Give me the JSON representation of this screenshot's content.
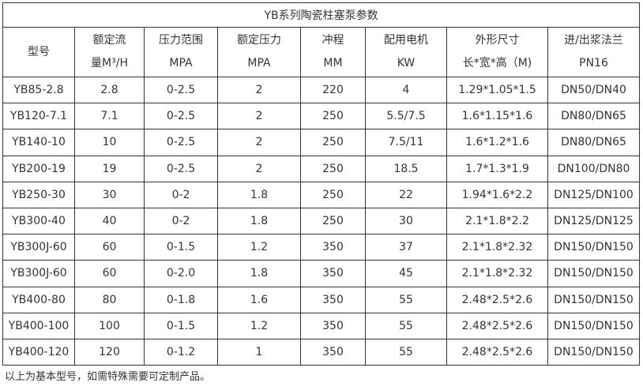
{
  "title": "YB系列陶瓷柱塞泵参数",
  "headers": [
    [
      "型号"
    ],
    [
      "额定流",
      "量M³/H"
    ],
    [
      "压力范围",
      "MPA"
    ],
    [
      "额定压力",
      "MPA"
    ],
    [
      "冲程",
      "MM"
    ],
    [
      "配用电机",
      "KW"
    ],
    [
      "外形尺寸",
      "长*宽*高（M)"
    ],
    [
      "进/出浆法兰",
      "PN16"
    ]
  ],
  "rows": [
    [
      "YB85-2.8",
      "2.8",
      "0-2.5",
      "2",
      "220",
      "4",
      "1.29*1.05*1.5",
      "DN50/DN40"
    ],
    [
      "YB120-7.1",
      "7.1",
      "0-2.5",
      "2",
      "250",
      "5.5/7.5",
      "1.6*1.15*1.6",
      "DN80/DN65"
    ],
    [
      "YB140-10",
      "10",
      "0-2.5",
      "2",
      "250",
      "7.5/11",
      "1.6*1.2*1.6",
      "DN80/DN65"
    ],
    [
      "YB200-19",
      "19",
      "0-2.5",
      "2",
      "250",
      "18.5",
      "1.7*1.3*1.9",
      "DN100/DN80"
    ],
    [
      "YB250-30",
      "30",
      "0-2",
      "1.8",
      "250",
      "22",
      "1.94*1.6*2.2",
      "DN125/DN100"
    ],
    [
      "YB300-40",
      "40",
      "0-2",
      "1.8",
      "250",
      "30",
      "2.1*1.8*2.2",
      "DN125/DN125"
    ],
    [
      "YB300J-60",
      "60",
      "0-1.5",
      "1.2",
      "350",
      "37",
      "2.1*1.8*2.32",
      "DN150/DN150"
    ],
    [
      "YB300J-60",
      "60",
      "0-2.0",
      "1.8",
      "350",
      "45",
      "2.1*1.8*2.32",
      "DN150/DN150"
    ],
    [
      "YB400-80",
      "80",
      "0-1.8",
      "1.6",
      "350",
      "55",
      "2.48*2.5*2.6",
      "DN150/DN150"
    ],
    [
      "YB400-100",
      "100",
      "0-1.5",
      "1.2",
      "350",
      "55",
      "2.48*2.5*2.6",
      "DN150/DN150"
    ],
    [
      "YB400-120",
      "120",
      "0-1.2",
      "1",
      "350",
      "55",
      "2.48*2.5*2.6",
      "DN150/DN150"
    ]
  ],
  "note": "以上为基本型号，如需特殊需要可定制产品。"
}
